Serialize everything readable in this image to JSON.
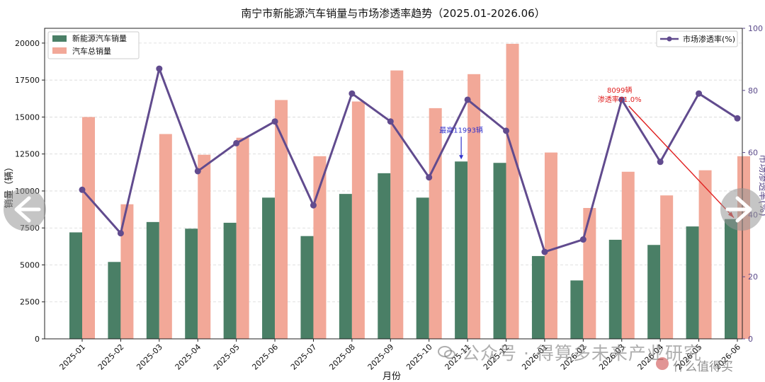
{
  "chart_data": {
    "type": "bar",
    "title": "南宁市新能源汽车销量与市场渗透率趋势（2025.01-2026.06）",
    "xlabel": "月份",
    "ylabel": "销量（辆）",
    "y2label": "市场渗透率(%)",
    "categories": [
      "2025-01",
      "2025-02",
      "2025-03",
      "2025-04",
      "2025-05",
      "2025-06",
      "2025-07",
      "2025-08",
      "2025-09",
      "2025-10",
      "2025-11",
      "2025-12",
      "2026-01",
      "2026-02",
      "2026-03",
      "2026-04",
      "2026-05",
      "2026-06"
    ],
    "series": [
      {
        "name": "新能源汽车销量",
        "axis": "left",
        "kind": "bar",
        "color": "#4a7f66",
        "values": [
          7200,
          5200,
          7900,
          7450,
          7850,
          9550,
          6950,
          9800,
          11200,
          9550,
          11993,
          11900,
          5600,
          3950,
          6700,
          6350,
          7600,
          8099
        ]
      },
      {
        "name": "汽车总销量",
        "axis": "left",
        "kind": "bar",
        "color": "#f2a898",
        "values": [
          15000,
          9100,
          13850,
          12450,
          13600,
          16150,
          12350,
          16050,
          18150,
          15600,
          17900,
          19950,
          12600,
          8850,
          11300,
          9700,
          11400,
          12350
        ]
      },
      {
        "name": "市场渗透率(%)",
        "axis": "right",
        "kind": "line",
        "color": "#614b8e",
        "values": [
          48,
          34,
          87,
          54,
          63,
          70,
          43,
          79,
          70,
          52,
          77,
          67,
          28,
          32,
          77,
          57,
          79,
          71
        ]
      }
    ],
    "ylim": [
      0,
      21000
    ],
    "yticks": [
      0,
      2500,
      5000,
      7500,
      10000,
      12500,
      15000,
      17500,
      20000
    ],
    "y2lim": [
      0,
      100
    ],
    "y2ticks": [
      0,
      20,
      40,
      60,
      80,
      100
    ],
    "grid": "horizontal dashed",
    "legend_left": "top-left",
    "legend_right": "top-right",
    "annotations": [
      {
        "text": "最高11993辆",
        "color": "#3333cc",
        "target_category": "2025-11",
        "target_value": 11993
      },
      {
        "text_lines": [
          "8099辆",
          "渗透率71.0%"
        ],
        "color": "#e02020",
        "from_category": "2026-03",
        "target_category": "2026-06",
        "target_value": 8099
      }
    ]
  },
  "watermark": {
    "main": "公众号 · 得算多未来产业研究",
    "site": "什么值得买"
  },
  "icons": {
    "prev": "arrow-left-icon",
    "next": "arrow-right-icon"
  }
}
